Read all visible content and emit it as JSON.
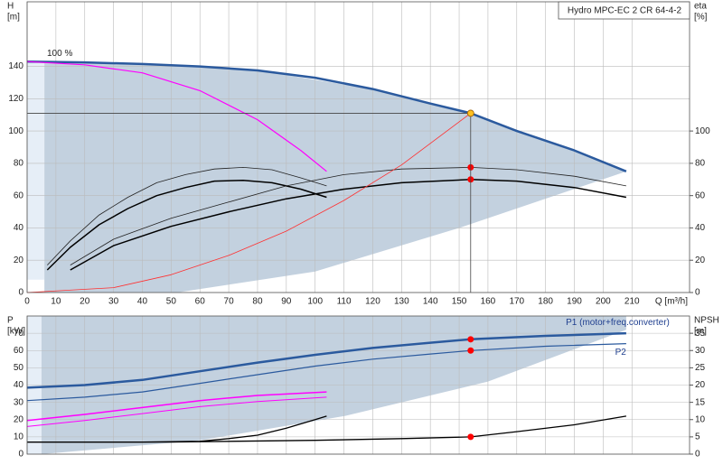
{
  "chart_data": [
    {
      "type": "line",
      "title": "Hydro MPC-EC 2 CR 64-4-2",
      "x_label": "Q [m³/h]",
      "y_label": [
        "H",
        "[m]"
      ],
      "y2_label": [
        "eta",
        "[%]"
      ],
      "xlim": [
        0,
        230
      ],
      "xticks": [
        0,
        10,
        20,
        30,
        40,
        50,
        60,
        70,
        80,
        90,
        100,
        110,
        120,
        130,
        140,
        150,
        160,
        170,
        180,
        190,
        200,
        210
      ],
      "x_tick_labels": true,
      "ylim": [
        0,
        180
      ],
      "yticks": [
        0,
        20,
        40,
        60,
        80,
        100,
        120,
        140
      ],
      "y2lim": [
        0,
        180
      ],
      "y2ticks": [
        0,
        20,
        40,
        60,
        80,
        100
      ],
      "grid": true,
      "areas": [
        {
          "color": "#e6eef7",
          "x": [
            0,
            6,
            6,
            0
          ],
          "values": [
            143,
            143,
            8,
            8
          ]
        },
        {
          "color": "#c3d1df",
          "x": [
            6,
            40,
            80,
            120,
            154,
            190,
            208,
            150,
            100,
            52,
            6
          ],
          "values": [
            143,
            141.5,
            137.5,
            126,
            111,
            88,
            75,
            40,
            13,
            0,
            0
          ]
        }
      ],
      "series": [
        {
          "label": "100 %",
          "color": "#2b5a9e",
          "line_width": 2.5,
          "x": [
            0,
            20,
            40,
            60,
            80,
            100,
            120,
            140,
            154,
            170,
            190,
            208
          ],
          "values": [
            143,
            142.5,
            141.5,
            140,
            137.5,
            133,
            126,
            117,
            111,
            100,
            88,
            75
          ]
        },
        {
          "color": "#ff00ff",
          "line_width": 1.2,
          "x": [
            0,
            20,
            40,
            60,
            80,
            95,
            104
          ],
          "values": [
            143,
            141,
            136,
            125,
            107,
            88,
            75
          ]
        },
        {
          "color": "#222222",
          "line_width": 0.8,
          "axis": "y2",
          "x": [
            7,
            15,
            25,
            35,
            45,
            55,
            65,
            75,
            85,
            95,
            104
          ],
          "values": [
            17,
            32,
            48,
            59,
            68,
            73,
            76.5,
            77.5,
            76,
            71,
            66
          ]
        },
        {
          "color": "#000000",
          "line_width": 1.5,
          "axis": "y2",
          "x": [
            7,
            15,
            25,
            35,
            45,
            55,
            65,
            75,
            85,
            95,
            104
          ],
          "values": [
            14,
            28,
            42,
            52,
            60,
            65,
            69,
            69.5,
            68,
            64,
            59
          ]
        },
        {
          "color": "#222222",
          "line_width": 0.8,
          "axis": "y2",
          "x": [
            15,
            30,
            50,
            70,
            90,
            110,
            130,
            154,
            170,
            190,
            208
          ],
          "values": [
            17,
            33,
            46,
            56,
            66,
            73,
            76.5,
            77.5,
            76,
            72,
            66
          ]
        },
        {
          "color": "#000000",
          "line_width": 1.5,
          "axis": "y2",
          "x": [
            15,
            30,
            50,
            70,
            90,
            110,
            130,
            154,
            170,
            190,
            208
          ],
          "values": [
            14,
            29,
            41,
            50,
            58,
            64,
            68,
            70,
            69,
            65,
            59
          ]
        },
        {
          "color": "#ff3030",
          "line_width": 0.8,
          "x": [
            0,
            30,
            50,
            70,
            90,
            110,
            130,
            154
          ],
          "values": [
            0,
            3,
            11,
            23,
            38,
            57,
            79,
            111
          ]
        },
        {
          "color": "#ff0000",
          "marker": true,
          "axis": "y2",
          "x": [
            154,
            154
          ],
          "values": [
            77.5,
            70
          ]
        },
        {
          "color": "#ffc020",
          "marker": true,
          "guides": true,
          "x": [
            154
          ],
          "values": [
            111
          ]
        }
      ]
    },
    {
      "type": "line",
      "y_label": [
        "P",
        "[kW]"
      ],
      "y2_label": [
        "NPSH",
        "[m]"
      ],
      "xlim": [
        0,
        230
      ],
      "xticks": [
        0,
        10,
        20,
        30,
        40,
        50,
        60,
        70,
        80,
        90,
        100,
        110,
        120,
        130,
        140,
        150,
        160,
        170,
        180,
        190,
        200,
        210
      ],
      "x_tick_labels": false,
      "ylim": [
        0,
        80
      ],
      "yticks": [
        0,
        10,
        20,
        30,
        40,
        50,
        60,
        70
      ],
      "y2lim": [
        0,
        40
      ],
      "y2ticks": [
        0,
        5,
        10,
        15,
        20,
        25,
        30,
        35
      ],
      "grid": true,
      "areas": [
        {
          "color": "#e6eef7",
          "x": [
            0,
            5,
            5,
            0
          ],
          "values": [
            80,
            80,
            0,
            0
          ]
        },
        {
          "color": "#c3d1df",
          "x": [
            5,
            208,
            208,
            160,
            110,
            60,
            5
          ],
          "values": [
            80,
            80,
            72,
            42,
            22,
            8,
            0
          ]
        }
      ],
      "series": [
        {
          "name": "P1 (motor+freq.converter)",
          "color": "#2b5a9e",
          "line_width": 2.5,
          "x": [
            0,
            20,
            40,
            60,
            80,
            100,
            120,
            140,
            154,
            180,
            208
          ],
          "values": [
            38.5,
            40,
            43,
            48,
            53,
            57.5,
            61.5,
            64.5,
            66.5,
            68.5,
            70
          ]
        },
        {
          "name": "P2",
          "color": "#2b5a9e",
          "line_width": 1.2,
          "x": [
            0,
            20,
            40,
            60,
            80,
            100,
            120,
            140,
            154,
            180,
            208
          ],
          "values": [
            31,
            33,
            36,
            41,
            46,
            51,
            55,
            58,
            60,
            62.5,
            64
          ]
        },
        {
          "color": "#ff00ff",
          "line_width": 1.5,
          "x": [
            0,
            20,
            40,
            60,
            80,
            104
          ],
          "values": [
            19.5,
            23,
            27,
            31,
            34,
            36
          ]
        },
        {
          "color": "#ff00ff",
          "line_width": 1,
          "x": [
            0,
            20,
            40,
            60,
            80,
            104
          ],
          "values": [
            16,
            19.5,
            23.5,
            27.5,
            30.5,
            33
          ]
        },
        {
          "color": "#000000",
          "line_width": 1.3,
          "axis": "y2",
          "x": [
            0,
            40,
            60,
            70,
            80,
            90,
            100,
            104
          ],
          "values": [
            3.5,
            3.5,
            3.7,
            4.5,
            5.5,
            7.5,
            10,
            11
          ]
        },
        {
          "color": "#000000",
          "line_width": 1.3,
          "axis": "y2",
          "x": [
            0,
            50,
            100,
            130,
            154,
            170,
            190,
            208
          ],
          "values": [
            3.5,
            3.5,
            4,
            4.5,
            5,
            6.5,
            8.5,
            11
          ]
        },
        {
          "color": "#ff0000",
          "marker": true,
          "x": [
            154,
            154
          ],
          "values": [
            66.5,
            60
          ]
        },
        {
          "color": "#ff0000",
          "marker": true,
          "axis": "y2",
          "x": [
            154
          ],
          "values": [
            5
          ]
        }
      ]
    }
  ]
}
